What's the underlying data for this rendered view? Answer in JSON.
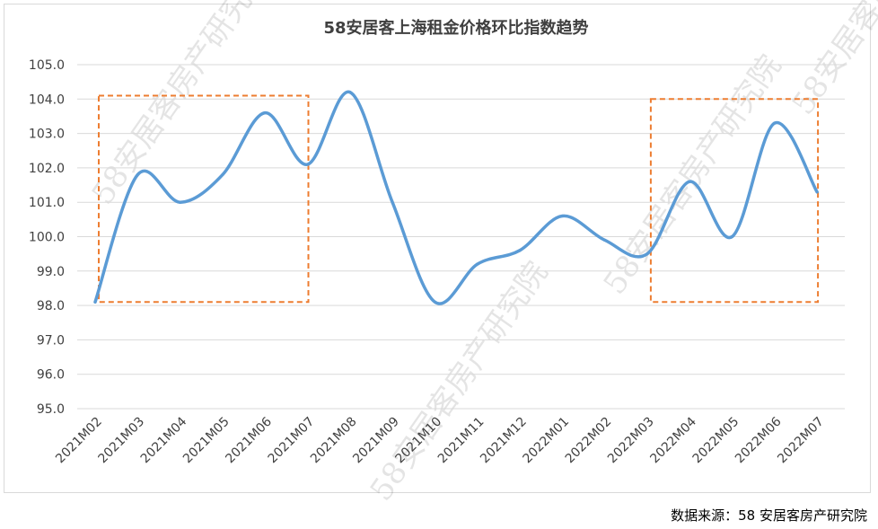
{
  "chart_data": {
    "type": "line",
    "title": "58安居客上海租金价格环比指数趋势",
    "categories": [
      "2021M02",
      "2021M03",
      "2021M04",
      "2021M05",
      "2021M06",
      "2021M07",
      "2021M08",
      "2021M09",
      "2021M10",
      "2021M11",
      "2021M12",
      "2022M01",
      "2022M02",
      "2022M03",
      "2022M04",
      "2022M05",
      "2022M06",
      "2022M07"
    ],
    "series": [
      {
        "values": [
          98.1,
          101.8,
          101.0,
          101.8,
          103.6,
          102.1,
          104.2,
          101.0,
          98.1,
          99.2,
          99.6,
          100.6,
          99.9,
          99.5,
          101.6,
          100.0,
          103.3,
          101.3
        ]
      }
    ],
    "yticks": [
      "105.0",
      "104.0",
      "103.0",
      "102.0",
      "101.0",
      "100.0",
      "99.0",
      "98.0",
      "97.0",
      "96.0",
      "95.0"
    ],
    "ylim": [
      95,
      105
    ],
    "grid": true,
    "line_color": "#5b9bd5",
    "highlight_color": "#ed7d31",
    "highlights": [
      {
        "from": "2021M02",
        "to": "2021M07",
        "ymin": 98.1,
        "ymax": 104.1
      },
      {
        "from": "2022M03",
        "to": "2022M07",
        "ymin": 98.1,
        "ymax": 104.0
      }
    ]
  },
  "watermark": "58安居客房产研究院",
  "source": "数据来源：58 安居客房产研究院"
}
